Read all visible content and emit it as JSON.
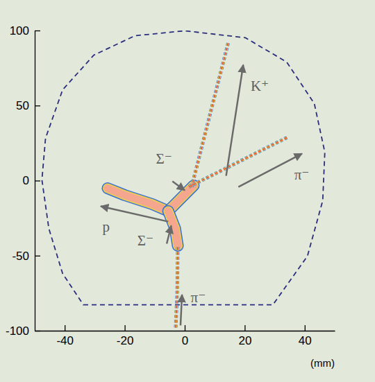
{
  "chart_data": {
    "type": "line",
    "x_label": "(mm)",
    "xlim": [
      -50,
      50
    ],
    "ylim": [
      -100,
      100
    ],
    "xticks": [
      -40,
      -20,
      0,
      20,
      40
    ],
    "yticks": [
      -100,
      -50,
      0,
      50,
      100
    ],
    "series": [
      {
        "color": "#f4a68e",
        "line_style": "solid",
        "x": [
          -5.5,
          -10.8,
          -20,
          -25.7
        ],
        "values": [
          -20.3,
          -15.7,
          -9.7,
          -5.1
        ]
      },
      {
        "color": "#f4a68e",
        "line_style": "solid",
        "x": [
          -5.5,
          3.0
        ],
        "values": [
          -20.3,
          -3.2
        ]
      },
      {
        "color": "#f4a68e",
        "line_style": "solid",
        "x": [
          -5.5,
          -3.2,
          -2.3
        ],
        "values": [
          -20.3,
          -31.9,
          -43.4
        ]
      },
      {
        "color": "#e8583f",
        "line_style": "dotted",
        "x": [
          -3.0,
          -2.5,
          -2.3
        ],
        "values": [
          -97.9,
          -73.4,
          -43.4
        ]
      },
      {
        "color": "#e8583f",
        "line_style": "dotted",
        "x": [
          2.3,
          14.5
        ],
        "values": [
          -4.2,
          91.9
        ]
      },
      {
        "color": "#e8583f",
        "line_style": "dotted",
        "x": [
          1.4,
          34.5
        ],
        "values": [
          -4.2,
          29.1
        ]
      }
    ],
    "boundary": {
      "color": "#2b2e7d",
      "line_style": "dashed",
      "x": [
        -33.8,
        29.4,
        40.9,
        46.0,
        46.7,
        43.2,
        34.0,
        20.2,
        0,
        -16.6,
        -30.3,
        -40.7,
        -46.4,
        -47.6,
        -45.3,
        -40.7
      ],
      "y": [
        -82.7,
        -82.7,
        -50.3,
        -13.4,
        18.9,
        51.3,
        79.0,
        95.2,
        99.8,
        96.5,
        83.6,
        60.5,
        28.2,
        0.5,
        -31.9,
        -61.9
      ]
    },
    "annotations": [
      {
        "text": "K⁺",
        "x": 25.0,
        "y": 62.0,
        "arrow_from": [
          13.8,
          3.2
        ],
        "arrow_to": [
          19.5,
          77.1
        ]
      },
      {
        "text": "π⁻",
        "x": 39.0,
        "y": 2.8,
        "arrow_from": [
          17.9,
          -4.2
        ],
        "arrow_to": [
          39.1,
          18.0
        ]
      },
      {
        "text": "Σ⁻",
        "x": -6.9,
        "y": 13.4,
        "arrow_from": [
          -4.1,
          -0.5
        ],
        "arrow_to": [
          0,
          -6.5
        ]
      },
      {
        "text": "p",
        "x": -26.2,
        "y": -31.9,
        "arrow_from": [
          -5.5,
          -27.3
        ],
        "arrow_to": [
          -28.0,
          -17.1
        ]
      },
      {
        "text": "Σ⁻",
        "x": -13.1,
        "y": -41.1,
        "arrow_from": [
          -6.0,
          -42.0
        ],
        "arrow_to": [
          -4.5,
          -30.0
        ]
      },
      {
        "text": "π⁻",
        "x": 4.5,
        "y": -79.0,
        "arrow_from": [
          -1.4,
          -96.5
        ],
        "arrow_to": [
          -0.9,
          -76.0
        ]
      }
    ]
  }
}
